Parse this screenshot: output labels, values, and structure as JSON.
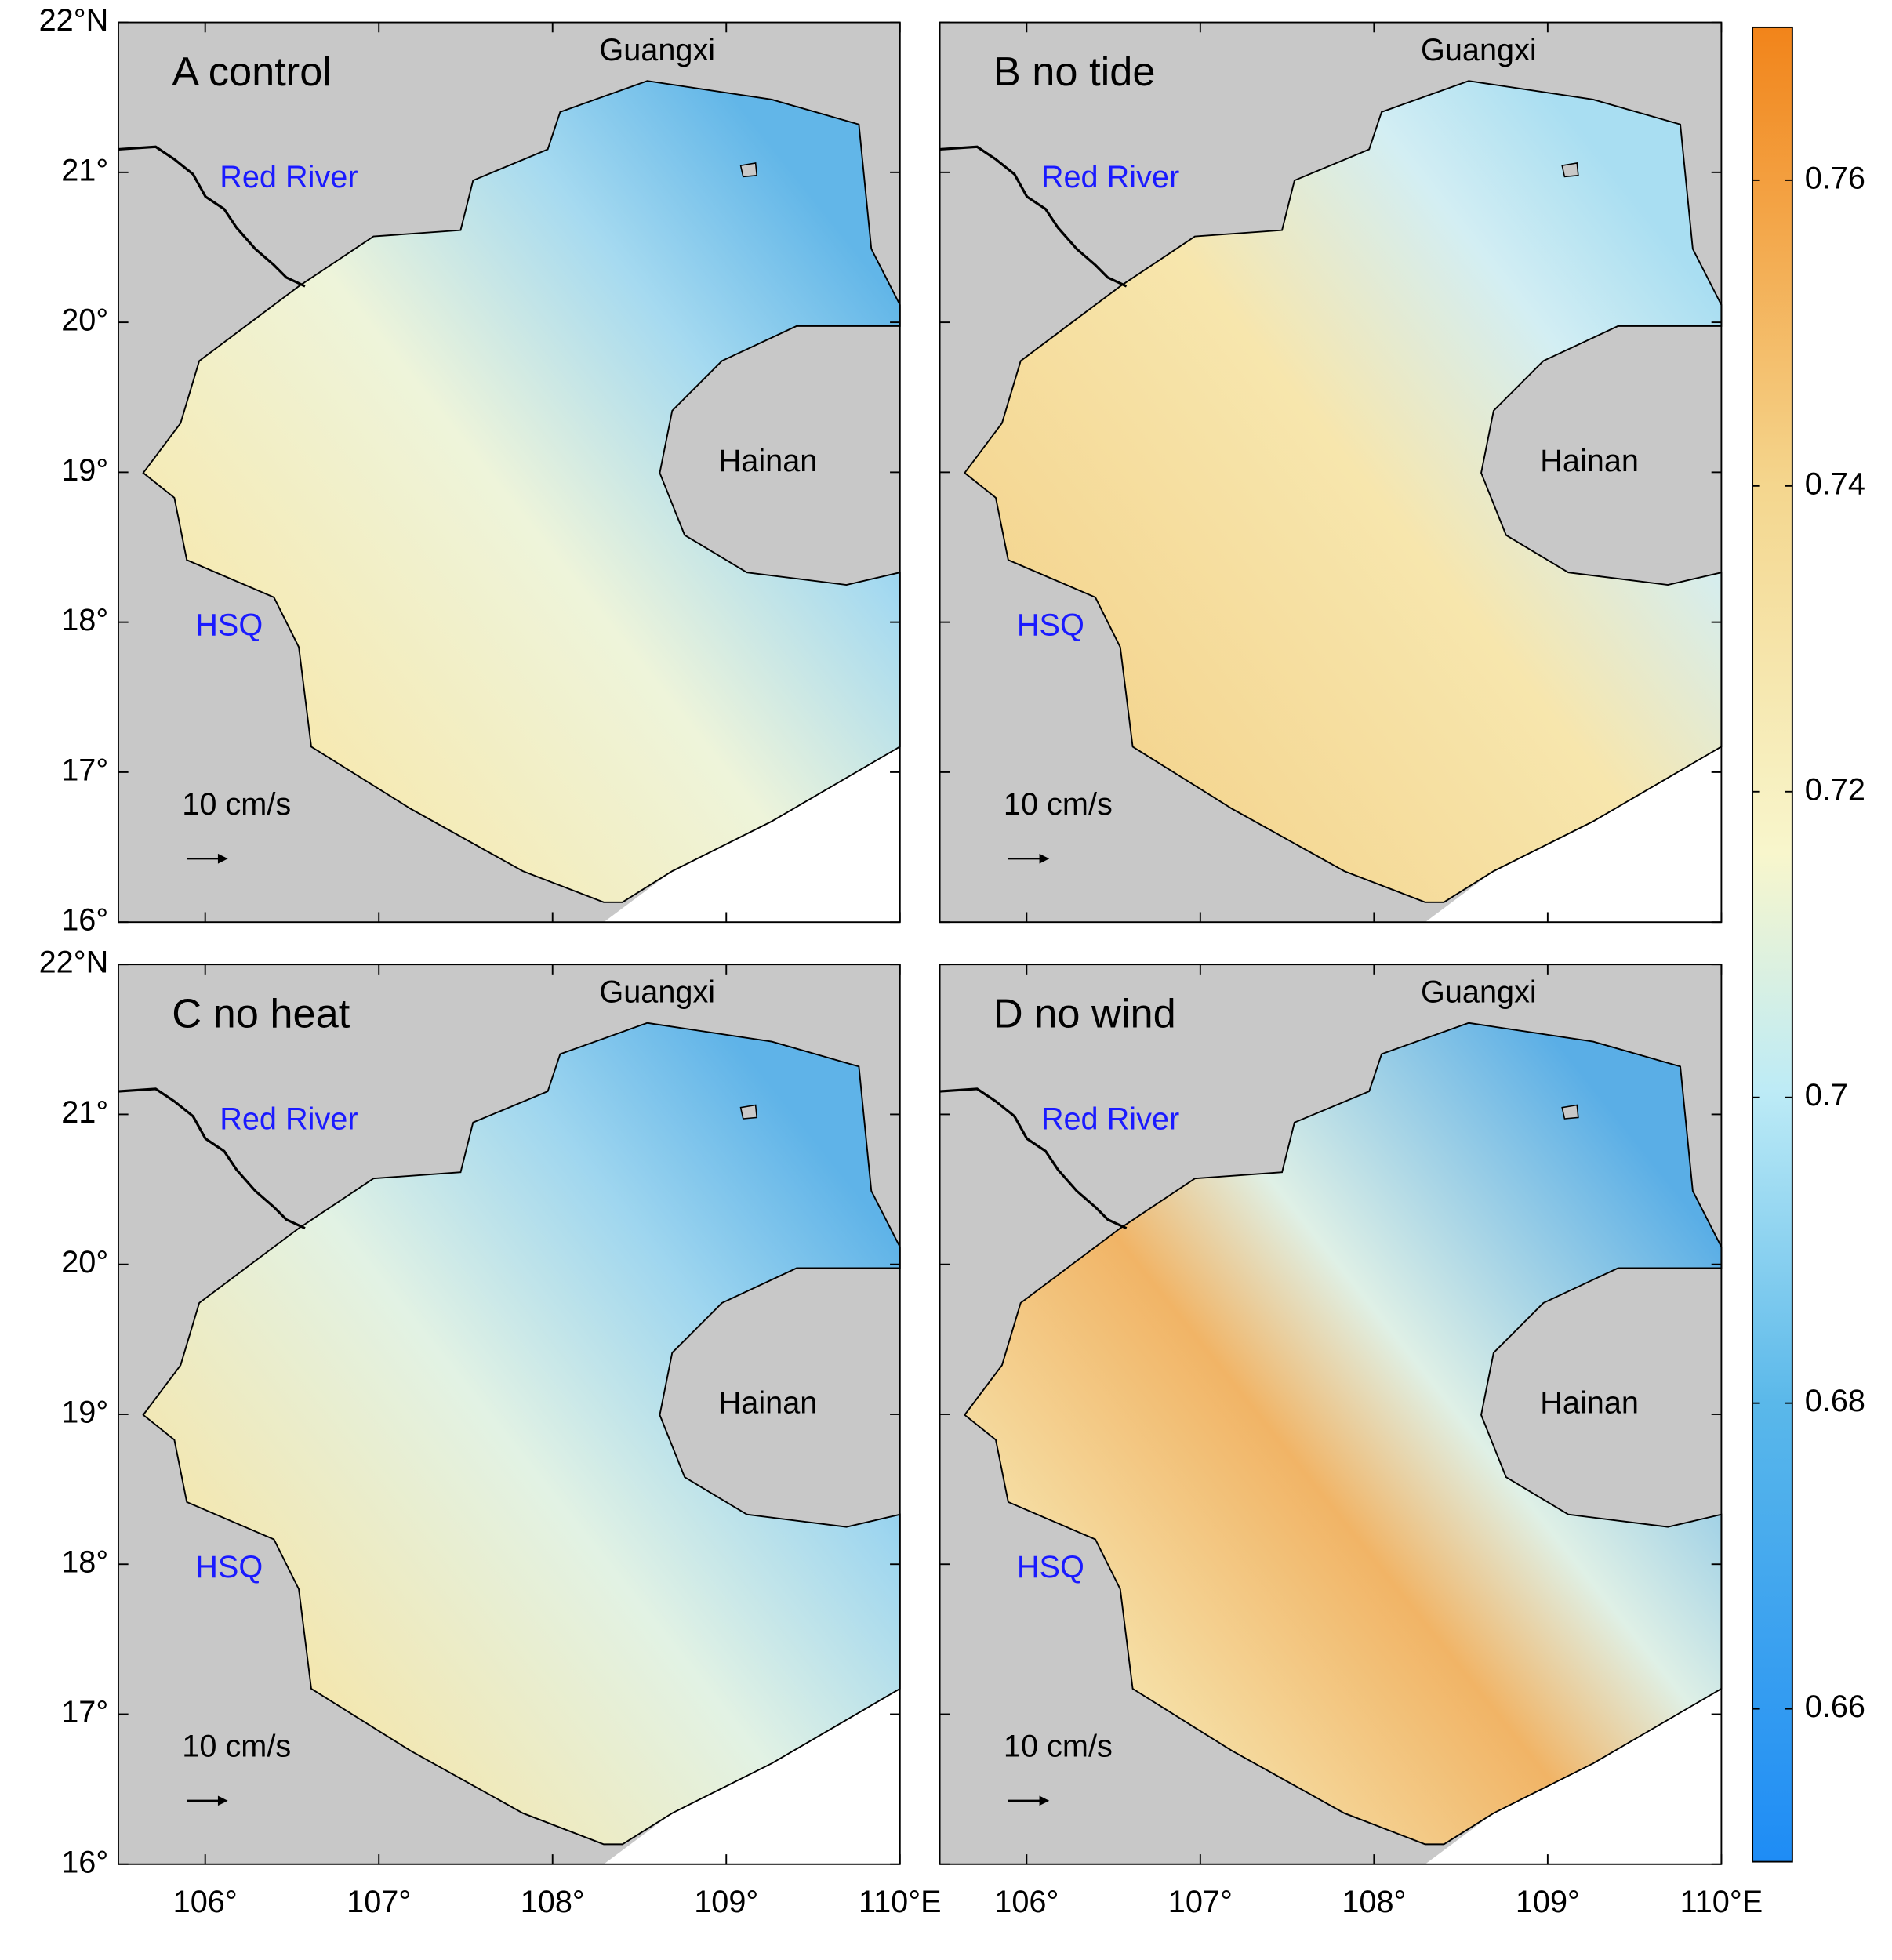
{
  "panels": [
    {
      "label": "A control"
    },
    {
      "label": "B no tide"
    },
    {
      "label": "C no heat"
    },
    {
      "label": "D no wind"
    }
  ],
  "places": {
    "guangxi": "Guangxi",
    "red_river": "Red River",
    "hainan": "Hainan",
    "hsq": "HSQ"
  },
  "scale_label": "10 cm/s",
  "map": {
    "xlim": [
      105.5,
      110
    ],
    "ylim": [
      16,
      22
    ],
    "xticks": [
      {
        "value": 106,
        "label": "106°"
      },
      {
        "value": 107,
        "label": "107°"
      },
      {
        "value": 108,
        "label": "108°"
      },
      {
        "value": 109,
        "label": "109°"
      },
      {
        "value": 110,
        "label": "110°E"
      }
    ],
    "yticks": [
      {
        "value": 16,
        "label": "16°"
      },
      {
        "value": 17,
        "label": "17°"
      },
      {
        "value": 18,
        "label": "18°"
      },
      {
        "value": 19,
        "label": "19°"
      },
      {
        "value": 20,
        "label": "20°"
      },
      {
        "value": 21,
        "label": "21°"
      },
      {
        "value": 22,
        "label": "22°N"
      }
    ]
  },
  "colorbar": {
    "clim": [
      0.65,
      0.77
    ],
    "ticks": [
      0.66,
      0.68,
      0.7,
      0.72,
      0.74,
      0.76
    ]
  }
}
